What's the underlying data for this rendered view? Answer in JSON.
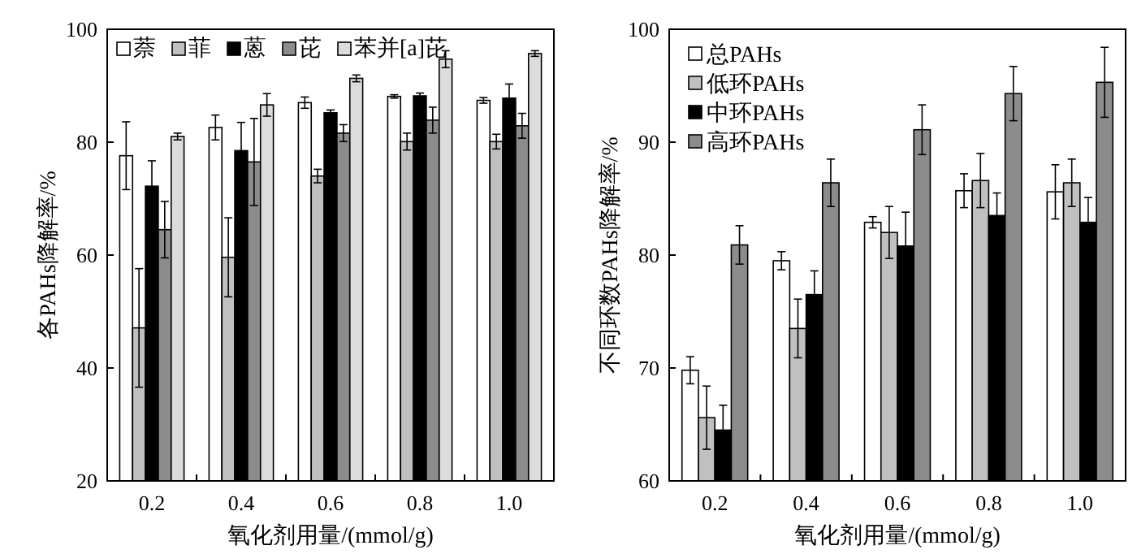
{
  "chart_data": [
    {
      "type": "bar",
      "xlabel": "氧化剂用量/(mmol/g)",
      "ylabel": "各PAHs降解率/%",
      "categories": [
        "0.2",
        "0.4",
        "0.6",
        "0.8",
        "1.0"
      ],
      "ylim": [
        20,
        100
      ],
      "yticks": [
        20,
        40,
        60,
        80,
        100
      ],
      "legend": "top",
      "grid": false,
      "series": [
        {
          "name": "萘",
          "color": "#ffffff",
          "values": [
            77.6,
            82.6,
            87,
            88.1,
            87.4
          ],
          "errors": [
            6,
            2.2,
            1,
            0.3,
            0.5
          ]
        },
        {
          "name": "菲",
          "color": "#c0c0c0",
          "values": [
            47.1,
            59.6,
            74,
            80.1,
            80.1
          ],
          "errors": [
            10.5,
            7,
            1.2,
            1.5,
            1.3
          ]
        },
        {
          "name": "蒽",
          "color": "#000000",
          "values": [
            72.2,
            78.5,
            85.2,
            88.2,
            87.8
          ],
          "errors": [
            4.5,
            5,
            0.5,
            0.5,
            2.5
          ]
        },
        {
          "name": "芘",
          "color": "#8c8c8c",
          "values": [
            64.5,
            76.5,
            81.6,
            83.9,
            82.9
          ],
          "errors": [
            5,
            7.7,
            1.5,
            2.3,
            2.2
          ]
        },
        {
          "name": "苯并[a]芘",
          "color": "#dcdcdc",
          "values": [
            81,
            86.6,
            91.3,
            94.7,
            95.7
          ],
          "errors": [
            0.6,
            2,
            0.6,
            1.5,
            0.5
          ]
        }
      ]
    },
    {
      "type": "bar",
      "xlabel": "氧化剂用量/(mmol/g)",
      "ylabel": "不同环数PAHs降解率/%",
      "categories": [
        "0.2",
        "0.4",
        "0.6",
        "0.8",
        "1.0"
      ],
      "ylim": [
        60,
        100
      ],
      "yticks": [
        60,
        70,
        80,
        90,
        100
      ],
      "legend": "top left",
      "grid": false,
      "series": [
        {
          "name": "总PAHs",
          "color": "#ffffff",
          "values": [
            69.8,
            79.5,
            82.9,
            85.7,
            85.6
          ],
          "errors": [
            1.2,
            0.8,
            0.5,
            1.5,
            2.4
          ]
        },
        {
          "name": "低环PAHs",
          "color": "#c0c0c0",
          "values": [
            65.6,
            73.5,
            82,
            86.6,
            86.4
          ],
          "errors": [
            2.8,
            2.6,
            2.3,
            2.4,
            2.1
          ]
        },
        {
          "name": "中环PAHs",
          "color": "#000000",
          "values": [
            64.5,
            76.5,
            80.8,
            83.5,
            82.9
          ],
          "errors": [
            2.2,
            2.1,
            3,
            2,
            2.2
          ]
        },
        {
          "name": "高环PAHs",
          "color": "#8c8c8c",
          "values": [
            80.9,
            86.4,
            91.1,
            94.3,
            95.3
          ],
          "errors": [
            1.7,
            2.1,
            2.2,
            2.4,
            3.1
          ]
        }
      ]
    }
  ]
}
